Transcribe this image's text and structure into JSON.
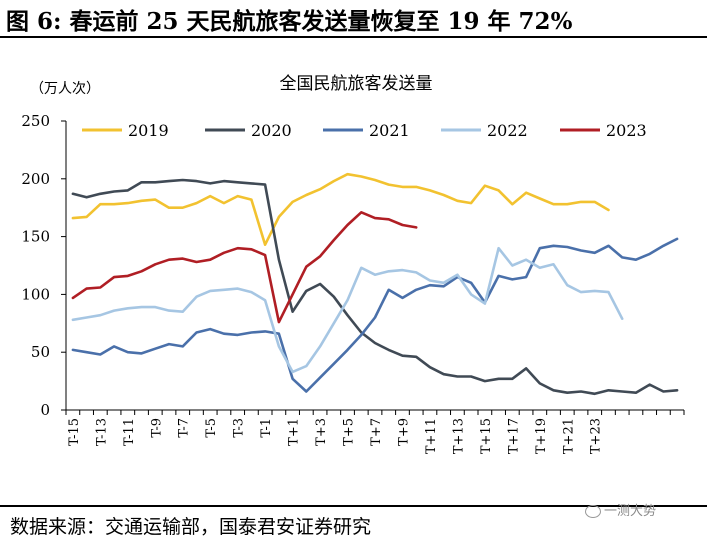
{
  "header": {
    "title": "图 6: 春运前 25 天民航旅客发送量恢复至 19 年 72%"
  },
  "footer": {
    "source": "数据来源：交通运输部，国泰君安证券研究"
  },
  "watermark": {
    "text": "一测大势"
  },
  "chart_data": {
    "type": "line",
    "title": "全国民航旅客发送量",
    "unit_label": "（万人次）",
    "xlabel": "",
    "ylabel": "",
    "ylim": [
      0,
      250
    ],
    "y_ticks": [
      0,
      50,
      100,
      150,
      200,
      250
    ],
    "grid": false,
    "legend_position": "top",
    "x_tick_labels": [
      "T-15",
      "T-13",
      "T-11",
      "T-9",
      "T-7",
      "T-5",
      "T-3",
      "T-1",
      "T+1",
      "T+3",
      "T+5",
      "T+7",
      "T+9",
      "T+11",
      "T+13",
      "T+15",
      "T+17",
      "T+19",
      "T+21",
      "T+23"
    ],
    "series": [
      {
        "name": "2019",
        "color": "#f2c230",
        "values": [
          166,
          167,
          178,
          178,
          179,
          181,
          182,
          175,
          175,
          179,
          185,
          179,
          185,
          182,
          143,
          167,
          180,
          186,
          191,
          198,
          204,
          202,
          199,
          195,
          193,
          193,
          190,
          186,
          181,
          179,
          194,
          190,
          178,
          188,
          183,
          178,
          178,
          180,
          180,
          173
        ]
      },
      {
        "name": "2020",
        "color": "#404a55",
        "values": [
          187,
          184,
          187,
          189,
          190,
          197,
          197,
          198,
          199,
          198,
          196,
          198,
          197,
          196,
          195,
          130,
          85,
          103,
          109,
          98,
          82,
          67,
          58,
          52,
          47,
          46,
          37,
          31,
          29,
          29,
          25,
          27,
          27,
          36,
          23,
          17,
          15,
          16,
          14,
          17,
          16,
          15,
          22,
          16,
          17
        ]
      },
      {
        "name": "2021",
        "color": "#4a70aa",
        "values": [
          52,
          50,
          48,
          55,
          50,
          49,
          53,
          57,
          55,
          67,
          70,
          66,
          65,
          67,
          68,
          66,
          27,
          16,
          28,
          40,
          52,
          65,
          80,
          104,
          97,
          104,
          108,
          107,
          115,
          110,
          93,
          116,
          113,
          115,
          140,
          142,
          141,
          138,
          136,
          142,
          132,
          130,
          135,
          142,
          148
        ]
      },
      {
        "name": "2022",
        "color": "#a6c6e3",
        "values": [
          78,
          80,
          82,
          86,
          88,
          89,
          89,
          86,
          85,
          98,
          103,
          104,
          105,
          102,
          95,
          55,
          33,
          38,
          55,
          75,
          95,
          123,
          117,
          120,
          121,
          119,
          112,
          110,
          117,
          100,
          92,
          140,
          125,
          130,
          123,
          126,
          108,
          102,
          103,
          102,
          79
        ]
      },
      {
        "name": "2023",
        "color": "#b01e24",
        "values": [
          97,
          105,
          106,
          115,
          116,
          120,
          126,
          130,
          131,
          128,
          130,
          136,
          140,
          139,
          134,
          76,
          100,
          124,
          133,
          147,
          160,
          171,
          166,
          165,
          160,
          158
        ]
      }
    ]
  }
}
